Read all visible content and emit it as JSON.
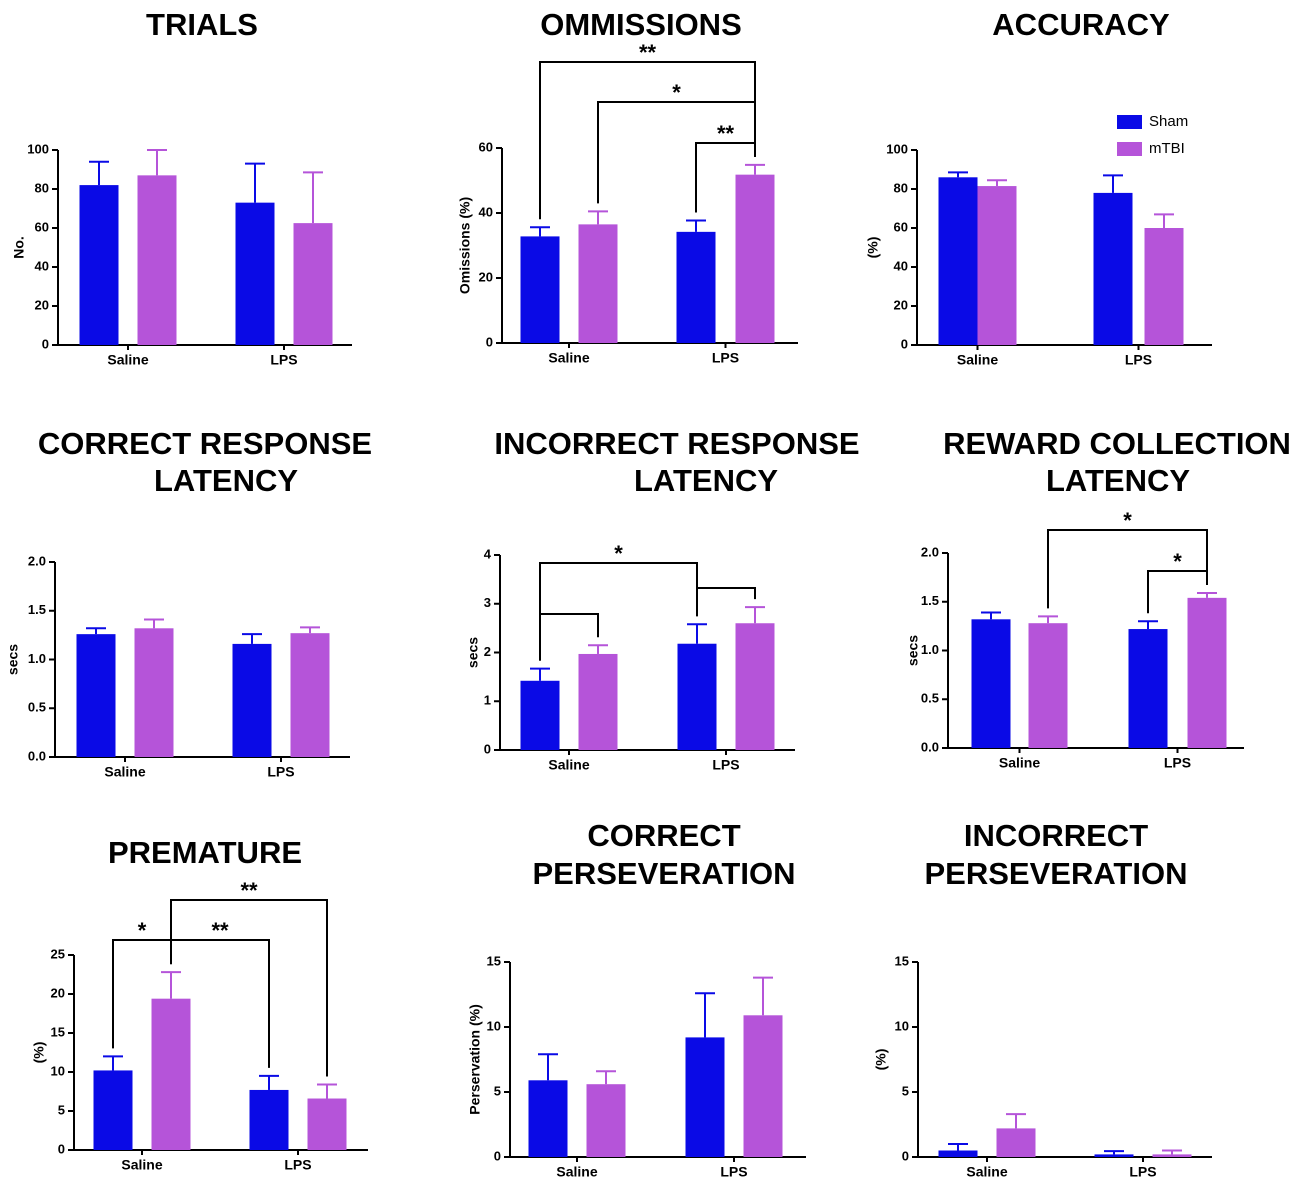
{
  "colors": {
    "sham": "#0a0ae6",
    "mtbi": "#b554d9",
    "axis": "#000000"
  },
  "legend": [
    {
      "label": "Sham",
      "color": "#0a0ae6"
    },
    {
      "label": "mTBI",
      "color": "#b554d9"
    }
  ],
  "chart_data": [
    {
      "type": "bar",
      "title": [
        "TRIALS"
      ],
      "ylabel": "No.",
      "ylim": [
        0,
        100
      ],
      "yticks": [
        "0",
        "20",
        "40",
        "60",
        "80",
        "100"
      ],
      "categories": [
        "Saline",
        "LPS"
      ],
      "series": [
        {
          "name": "Sham",
          "values": [
            82,
            73
          ],
          "errors": [
            12,
            20
          ]
        },
        {
          "name": "mTBI",
          "values": [
            87,
            62.5
          ],
          "errors": [
            13,
            26
          ]
        }
      ],
      "significance": []
    },
    {
      "type": "bar",
      "title": [
        "OMMISSIONS"
      ],
      "ylabel": "Omissions (%)",
      "ylim": [
        0,
        60
      ],
      "yticks": [
        "0",
        "20",
        "40",
        "60"
      ],
      "categories": [
        "Saline",
        "LPS"
      ],
      "series": [
        {
          "name": "Sham",
          "values": [
            32.8,
            34.2
          ],
          "errors": [
            2.8,
            3.5
          ]
        },
        {
          "name": "mTBI",
          "values": [
            36.5,
            51.8
          ],
          "errors": [
            4,
            3
          ]
        }
      ],
      "significance": [
        {
          "from": [
            0,
            0
          ],
          "to": [
            1,
            1
          ],
          "label": "**"
        },
        {
          "from": [
            0,
            1
          ],
          "to": [
            1,
            1
          ],
          "label": "*"
        },
        {
          "from": [
            1,
            0
          ],
          "to": [
            1,
            1
          ],
          "label": "**"
        }
      ]
    },
    {
      "type": "bar",
      "title": [
        "ACCURACY"
      ],
      "ylabel": "(%)",
      "ylim": [
        0,
        100
      ],
      "yticks": [
        "0",
        "20",
        "40",
        "60",
        "80",
        "100"
      ],
      "categories": [
        "Saline",
        "LPS"
      ],
      "series": [
        {
          "name": "Sham",
          "values": [
            86,
            78
          ],
          "errors": [
            2.5,
            9
          ]
        },
        {
          "name": "mTBI",
          "values": [
            81.5,
            60
          ],
          "errors": [
            3,
            7
          ]
        }
      ],
      "significance": []
    },
    {
      "type": "bar",
      "title": [
        "CORRECT RESPONSE",
        "LATENCY"
      ],
      "ylabel": "secs",
      "ylim": [
        0,
        2
      ],
      "yticks": [
        "0.0",
        "0.5",
        "1.0",
        "1.5",
        "2.0"
      ],
      "categories": [
        "Saline",
        "LPS"
      ],
      "series": [
        {
          "name": "Sham",
          "values": [
            1.26,
            1.16
          ],
          "errors": [
            0.06,
            0.1
          ]
        },
        {
          "name": "mTBI",
          "values": [
            1.32,
            1.27
          ],
          "errors": [
            0.09,
            0.06
          ]
        }
      ],
      "significance": []
    },
    {
      "type": "bar",
      "title": [
        "INCORRECT RESPONSE",
        "LATENCY"
      ],
      "ylabel": "secs",
      "ylim": [
        0,
        4
      ],
      "yticks": [
        "0",
        "1",
        "2",
        "3",
        "4"
      ],
      "categories": [
        "Saline",
        "LPS"
      ],
      "series": [
        {
          "name": "Sham",
          "values": [
            1.42,
            2.18
          ],
          "errors": [
            0.25,
            0.4
          ]
        },
        {
          "name": "mTBI",
          "values": [
            1.97,
            2.6
          ],
          "errors": [
            0.18,
            0.33
          ]
        }
      ],
      "significance": [
        {
          "from": [
            0,
            0
          ],
          "to": [
            1,
            0
          ],
          "label": "*"
        },
        {
          "from": [
            0,
            0
          ],
          "to": [
            0,
            1
          ],
          "label": ""
        },
        {
          "from": [
            1,
            0
          ],
          "to": [
            1,
            1
          ],
          "label": ""
        }
      ]
    },
    {
      "type": "bar",
      "title": [
        "REWARD COLLECTION",
        "LATENCY"
      ],
      "ylabel": "secs",
      "ylim": [
        0,
        2
      ],
      "yticks": [
        "0.0",
        "0.5",
        "1.0",
        "1.5",
        "2.0"
      ],
      "categories": [
        "Saline",
        "LPS"
      ],
      "series": [
        {
          "name": "Sham",
          "values": [
            1.32,
            1.22
          ],
          "errors": [
            0.07,
            0.08
          ]
        },
        {
          "name": "mTBI",
          "values": [
            1.28,
            1.54
          ],
          "errors": [
            0.07,
            0.05
          ]
        }
      ],
      "significance": [
        {
          "from": [
            0,
            1
          ],
          "to": [
            1,
            1
          ],
          "label": "*"
        },
        {
          "from": [
            1,
            0
          ],
          "to": [
            1,
            1
          ],
          "label": "*"
        }
      ]
    },
    {
      "type": "bar",
      "title": [
        "PREMATURE"
      ],
      "ylabel": "(%)",
      "ylim": [
        0,
        25
      ],
      "yticks": [
        "0",
        "5",
        "10",
        "15",
        "20",
        "25"
      ],
      "categories": [
        "Saline",
        "LPS"
      ],
      "series": [
        {
          "name": "Sham",
          "values": [
            10.2,
            7.7
          ],
          "errors": [
            1.8,
            1.8
          ]
        },
        {
          "name": "mTBI",
          "values": [
            19.4,
            6.6
          ],
          "errors": [
            3.4,
            1.8
          ]
        }
      ],
      "significance": [
        {
          "from": [
            0,
            0
          ],
          "to": [
            0,
            1
          ],
          "label": "*"
        },
        {
          "from": [
            0,
            1
          ],
          "to": [
            1,
            0
          ],
          "label": "**"
        },
        {
          "from": [
            0,
            1
          ],
          "to": [
            1,
            1
          ],
          "label": "**"
        }
      ]
    },
    {
      "type": "bar",
      "title": [
        "CORRECT",
        "PERSEVERATION"
      ],
      "ylabel": "Perservation (%)",
      "ylim": [
        0,
        15
      ],
      "yticks": [
        "0",
        "5",
        "10",
        "15"
      ],
      "categories": [
        "Saline",
        "LPS"
      ],
      "series": [
        {
          "name": "Sham",
          "values": [
            5.9,
            9.2
          ],
          "errors": [
            2,
            3.4
          ]
        },
        {
          "name": "mTBI",
          "values": [
            5.6,
            10.9
          ],
          "errors": [
            1,
            2.9
          ]
        }
      ],
      "significance": []
    },
    {
      "type": "bar",
      "title": [
        "INCORRECT",
        "PERSEVERATION"
      ],
      "ylabel": "(%)",
      "ylim": [
        0,
        15
      ],
      "yticks": [
        "0",
        "5",
        "10",
        "15"
      ],
      "categories": [
        "Saline",
        "LPS"
      ],
      "series": [
        {
          "name": "Sham",
          "values": [
            0.5,
            0.2
          ],
          "errors": [
            0.5,
            0.25
          ]
        },
        {
          "name": "mTBI",
          "values": [
            2.2,
            0.2
          ],
          "errors": [
            1.1,
            0.3
          ]
        }
      ],
      "significance": []
    }
  ]
}
